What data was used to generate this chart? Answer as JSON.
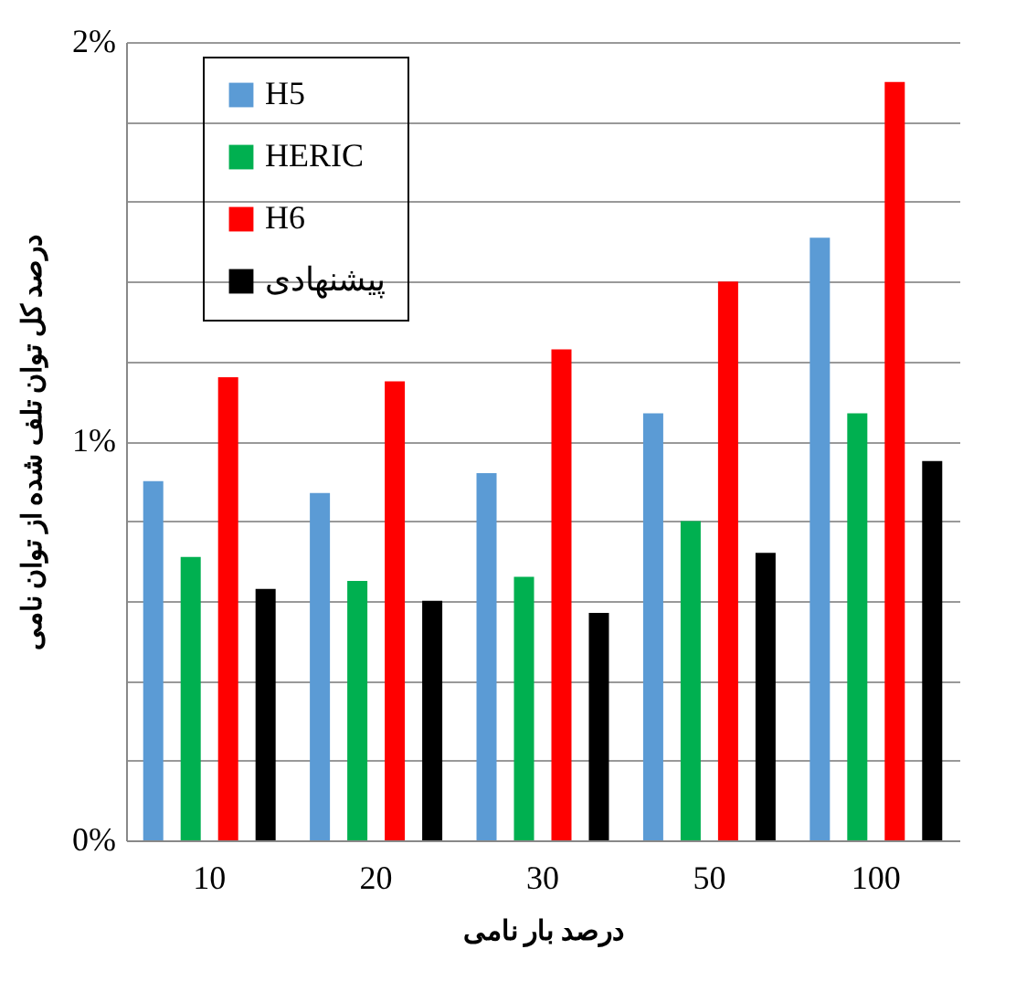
{
  "chart_data": {
    "type": "bar",
    "xlabel": "درصد بار نامی",
    "ylabel": "درصد کل توان تلف شده از توان نامی",
    "categories": [
      "10",
      "20",
      "30",
      "50",
      "100"
    ],
    "series": [
      {
        "name": "H5",
        "color": "#5b9bd5",
        "values": [
          0.9,
          0.87,
          0.92,
          1.07,
          1.51
        ]
      },
      {
        "name": "HERIC",
        "color": "#00b050",
        "values": [
          0.71,
          0.65,
          0.66,
          0.8,
          1.07
        ]
      },
      {
        "name": "H6",
        "color": "#ff0000",
        "values": [
          1.16,
          1.15,
          1.23,
          1.4,
          1.9
        ]
      },
      {
        "name": "پیشنهادی",
        "color": "#000000",
        "values": [
          0.63,
          0.6,
          0.57,
          0.72,
          0.95
        ]
      }
    ],
    "ylim": [
      0,
      2
    ],
    "yticks": [
      {
        "value": 0,
        "label": "0%"
      },
      {
        "value": 0.2,
        "label": null
      },
      {
        "value": 0.4,
        "label": null
      },
      {
        "value": 0.6,
        "label": null
      },
      {
        "value": 0.8,
        "label": null
      },
      {
        "value": 1,
        "label": "1%"
      },
      {
        "value": 1.2,
        "label": null
      },
      {
        "value": 1.4,
        "label": null
      },
      {
        "value": 1.6,
        "label": null
      },
      {
        "value": 1.8,
        "label": null
      },
      {
        "value": 2,
        "label": "2%"
      }
    ],
    "grid": "y",
    "legend": "top left"
  }
}
